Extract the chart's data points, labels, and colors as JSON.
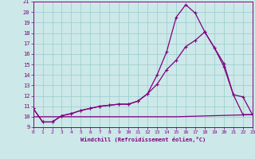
{
  "xlabel": "Windchill (Refroidissement éolien,°C)",
  "xlim": [
    0,
    23
  ],
  "ylim": [
    9,
    21
  ],
  "xticks": [
    0,
    1,
    2,
    3,
    4,
    5,
    6,
    7,
    8,
    9,
    10,
    11,
    12,
    13,
    14,
    15,
    16,
    17,
    18,
    19,
    20,
    21,
    22,
    23
  ],
  "yticks": [
    9,
    10,
    11,
    12,
    13,
    14,
    15,
    16,
    17,
    18,
    19,
    20,
    21
  ],
  "bg_color": "#cce8e8",
  "line_color": "#800080",
  "grid_color": "#99cccc",
  "line1_x": [
    0,
    1,
    2,
    3,
    4,
    5,
    6,
    7,
    8,
    9,
    10,
    11,
    12,
    13,
    14,
    15,
    16,
    17,
    18,
    19,
    20,
    21,
    22,
    23
  ],
  "line1_y": [
    10.8,
    9.5,
    9.5,
    10.1,
    10.3,
    10.6,
    10.8,
    11.0,
    11.1,
    11.2,
    11.2,
    11.5,
    12.2,
    14.0,
    16.2,
    19.5,
    20.7,
    19.9,
    18.1,
    16.6,
    14.8,
    12.1,
    11.9,
    10.2
  ],
  "line2_x": [
    0,
    1,
    2,
    3,
    4,
    5,
    6,
    7,
    8,
    9,
    10,
    11,
    12,
    13,
    14,
    15,
    16,
    17,
    18,
    19,
    20,
    21,
    22,
    23
  ],
  "line2_y": [
    10.8,
    9.5,
    9.5,
    10.1,
    10.3,
    10.6,
    10.8,
    11.0,
    11.1,
    11.2,
    11.2,
    11.5,
    12.2,
    13.1,
    14.5,
    15.4,
    16.7,
    17.3,
    18.1,
    16.6,
    15.1,
    12.1,
    10.2,
    10.2
  ],
  "line3_x": [
    0,
    15,
    23
  ],
  "line3_y": [
    10.0,
    10.0,
    10.2
  ]
}
